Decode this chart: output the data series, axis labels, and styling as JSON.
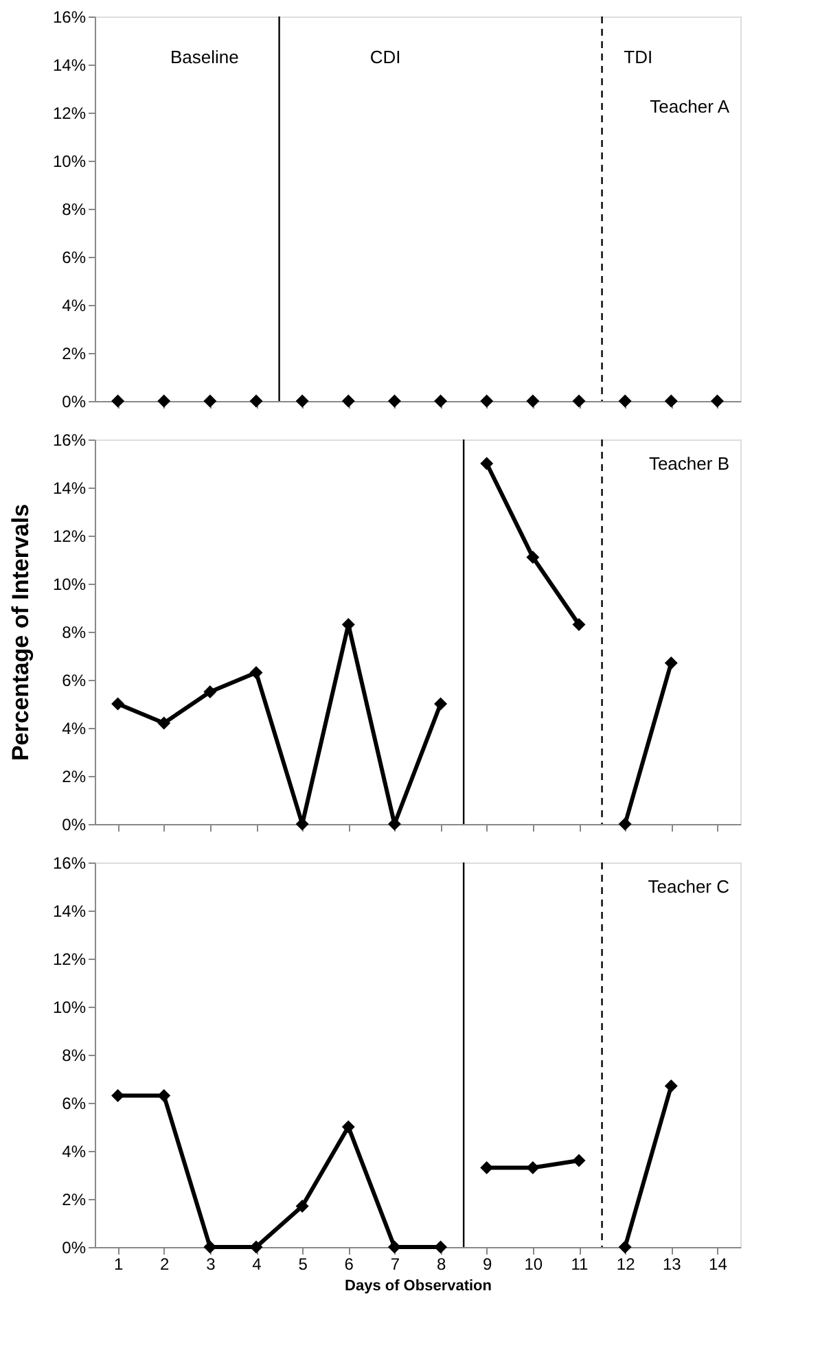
{
  "chart_data": [
    {
      "type": "line",
      "marker": "diamond",
      "grid": false,
      "tick_labels": "y",
      "xlim": [
        0.5,
        14.5
      ],
      "xticks": [
        1,
        2,
        3,
        4,
        5,
        6,
        7,
        8,
        9,
        10,
        11,
        12,
        13,
        14
      ],
      "ylim": [
        0,
        16
      ],
      "yticks": [
        {
          "value": 0,
          "label": "0%"
        },
        {
          "value": 2,
          "label": "2%"
        },
        {
          "value": 4,
          "label": "4%"
        },
        {
          "value": 6,
          "label": "6%"
        },
        {
          "value": 8,
          "label": "8%"
        },
        {
          "value": 10,
          "label": "10%"
        },
        {
          "value": 12,
          "label": "12%"
        },
        {
          "value": 14,
          "label": "14%"
        },
        {
          "value": 16,
          "label": "16%"
        }
      ],
      "series": [
        {
          "type": "scatter",
          "color": "#000000",
          "x": [
            1,
            2,
            3,
            4,
            5,
            6,
            7,
            8,
            9,
            10,
            11,
            12,
            13,
            14
          ],
          "values": [
            0,
            0,
            0,
            0,
            0,
            0,
            0,
            0,
            0,
            0,
            0,
            0,
            0,
            0
          ]
        }
      ],
      "ref_lines": [
        {
          "axis": "x",
          "value": 4.5,
          "color": "#000000",
          "line_style": "solid"
        },
        {
          "axis": "x",
          "value": 11.5,
          "color": "#000000",
          "line_style": "dashed"
        }
      ],
      "annotations": [
        "Baseline",
        "CDI",
        "TDI",
        "Teacher  A"
      ]
    },
    {
      "type": "line",
      "marker": "diamond",
      "line_style": "solid",
      "grid": false,
      "tick_labels": "y",
      "ylabel": "Percentage of Intervals",
      "xlim": [
        0.5,
        14.5
      ],
      "xticks": [
        1,
        2,
        3,
        4,
        5,
        6,
        7,
        8,
        9,
        10,
        11,
        12,
        13,
        14
      ],
      "ylim": [
        0,
        16
      ],
      "yticks": [
        {
          "value": 0,
          "label": "0%"
        },
        {
          "value": 2,
          "label": "2%"
        },
        {
          "value": 4,
          "label": "4%"
        },
        {
          "value": 6,
          "label": "6%"
        },
        {
          "value": 8,
          "label": "8%"
        },
        {
          "value": 10,
          "label": "10%"
        },
        {
          "value": 12,
          "label": "12%"
        },
        {
          "value": 14,
          "label": "14%"
        },
        {
          "value": 16,
          "label": "16%"
        }
      ],
      "series": [
        {
          "color": "#000000",
          "x": [
            1,
            2,
            3,
            4,
            5,
            6,
            7,
            8
          ],
          "values": [
            5,
            4.2,
            5.5,
            6.3,
            0,
            8.3,
            0,
            5
          ]
        },
        {
          "color": "#000000",
          "x": [
            9,
            10,
            11
          ],
          "values": [
            15,
            11.1,
            8.3
          ]
        },
        {
          "color": "#000000",
          "x": [
            12,
            13
          ],
          "values": [
            0,
            6.7
          ]
        }
      ],
      "ref_lines": [
        {
          "axis": "x",
          "value": 8.5,
          "color": "#000000",
          "line_style": "solid"
        },
        {
          "axis": "x",
          "value": 11.5,
          "color": "#000000",
          "line_style": "dashed"
        }
      ],
      "annotations": [
        "Teacher B"
      ]
    },
    {
      "type": "line",
      "marker": "diamond",
      "line_style": "solid",
      "grid": false,
      "xlabel": "Days  of Observation",
      "xlim": [
        0.5,
        14.5
      ],
      "xticks": [
        1,
        2,
        3,
        4,
        5,
        6,
        7,
        8,
        9,
        10,
        11,
        12,
        13,
        14
      ],
      "ylim": [
        0,
        16
      ],
      "yticks": [
        {
          "value": 0,
          "label": "0%"
        },
        {
          "value": 2,
          "label": "2%"
        },
        {
          "value": 4,
          "label": "4%"
        },
        {
          "value": 6,
          "label": "6%"
        },
        {
          "value": 8,
          "label": "8%"
        },
        {
          "value": 10,
          "label": "10%"
        },
        {
          "value": 12,
          "label": "12%"
        },
        {
          "value": 14,
          "label": "14%"
        },
        {
          "value": 16,
          "label": "16%"
        }
      ],
      "series": [
        {
          "color": "#000000",
          "x": [
            1,
            2,
            3,
            4,
            5,
            6,
            7,
            8
          ],
          "values": [
            6.3,
            6.3,
            0,
            0,
            1.7,
            5,
            0,
            0
          ]
        },
        {
          "color": "#000000",
          "x": [
            9,
            10,
            11
          ],
          "values": [
            3.3,
            3.3,
            3.6
          ]
        },
        {
          "color": "#000000",
          "x": [
            12,
            13
          ],
          "values": [
            0,
            6.7
          ]
        }
      ],
      "ref_lines": [
        {
          "axis": "x",
          "value": 8.5,
          "color": "#000000",
          "line_style": "solid"
        },
        {
          "axis": "x",
          "value": 11.5,
          "color": "#000000",
          "line_style": "dashed"
        }
      ],
      "annotations": [
        "Teacher C"
      ]
    }
  ]
}
